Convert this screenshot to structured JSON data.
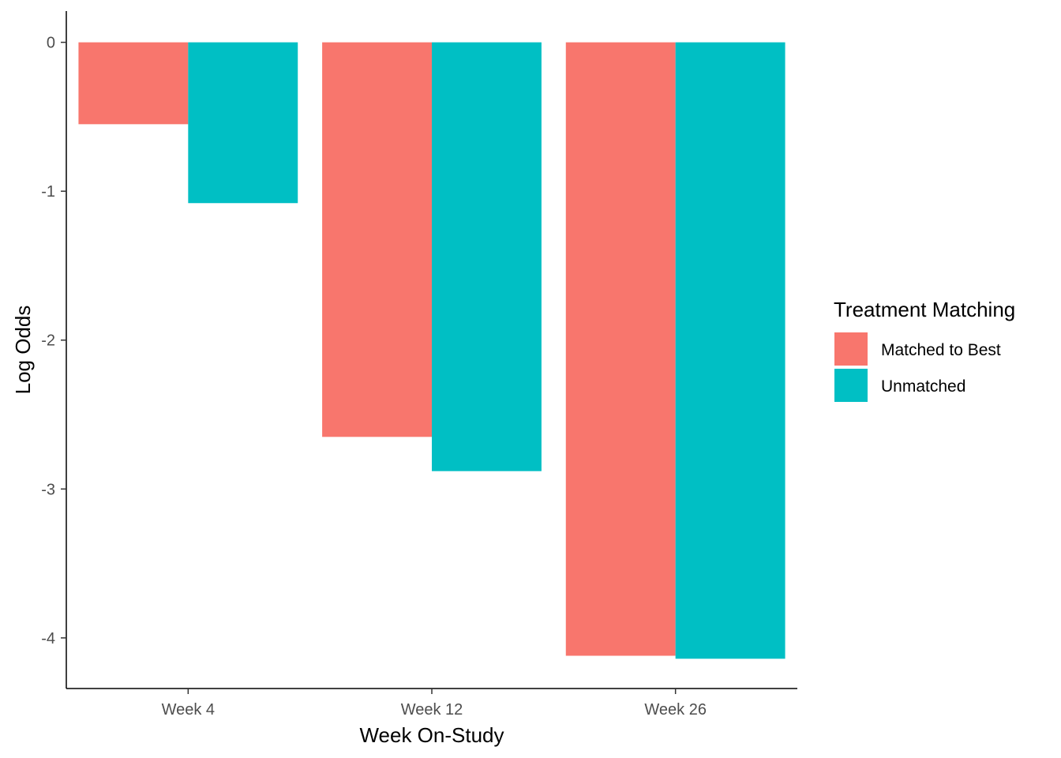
{
  "chart_data": {
    "type": "bar",
    "categories": [
      "Week 4",
      "Week 12",
      "Week 26"
    ],
    "series": [
      {
        "name": "Matched to Best",
        "values": [
          -0.55,
          -2.65,
          -4.12
        ],
        "color": "#F8766D"
      },
      {
        "name": "Unmatched",
        "values": [
          -1.08,
          -2.88,
          -4.14
        ],
        "color": "#00BFC4"
      }
    ],
    "xlabel": "Week On-Study",
    "ylabel": "Log Odds",
    "yticks": [
      0,
      -1,
      -2,
      -3,
      -4
    ],
    "ylim": [
      -4.34,
      0.21
    ],
    "legend": {
      "title": "Treatment Matching",
      "position": "right"
    },
    "grid": false
  }
}
